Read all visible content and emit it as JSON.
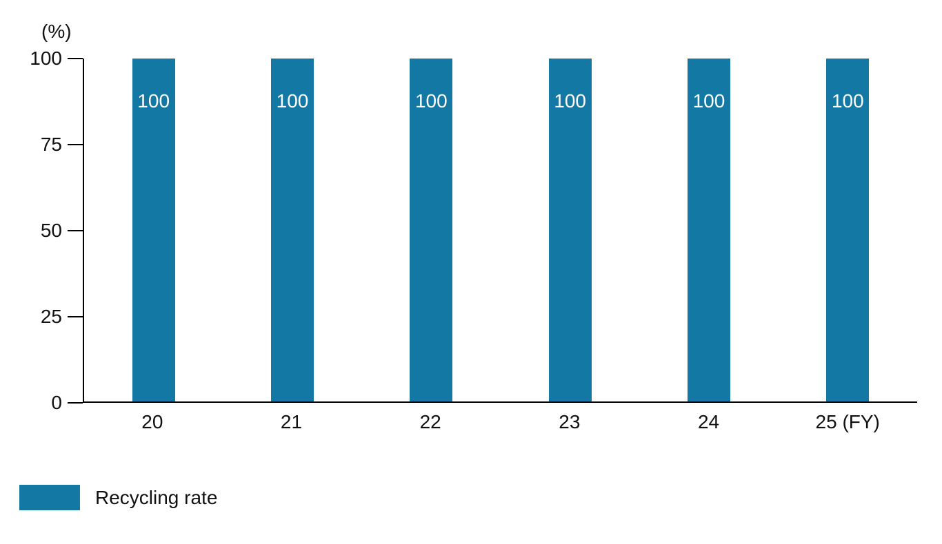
{
  "chart_data": {
    "type": "bar",
    "title": "",
    "categories": [
      "20",
      "21",
      "22",
      "23",
      "24",
      "25 (FY)"
    ],
    "series": [
      {
        "name": "Recycling rate",
        "values": [
          100,
          100,
          100,
          100,
          100,
          100
        ]
      }
    ],
    "value_labels": [
      "100",
      "100",
      "100",
      "100",
      "100",
      "100"
    ],
    "xlabel": "",
    "ylabel": "(%)",
    "yticks": [
      0,
      25,
      50,
      75,
      100
    ],
    "ylim": [
      0,
      100
    ],
    "grid": false,
    "legend_position": "bottom-left",
    "bar_color": "#1478a5",
    "value_label_color": "#ffffff",
    "axis_color": "#000000"
  },
  "legend": {
    "recycling_rate_label": "Recycling rate"
  }
}
